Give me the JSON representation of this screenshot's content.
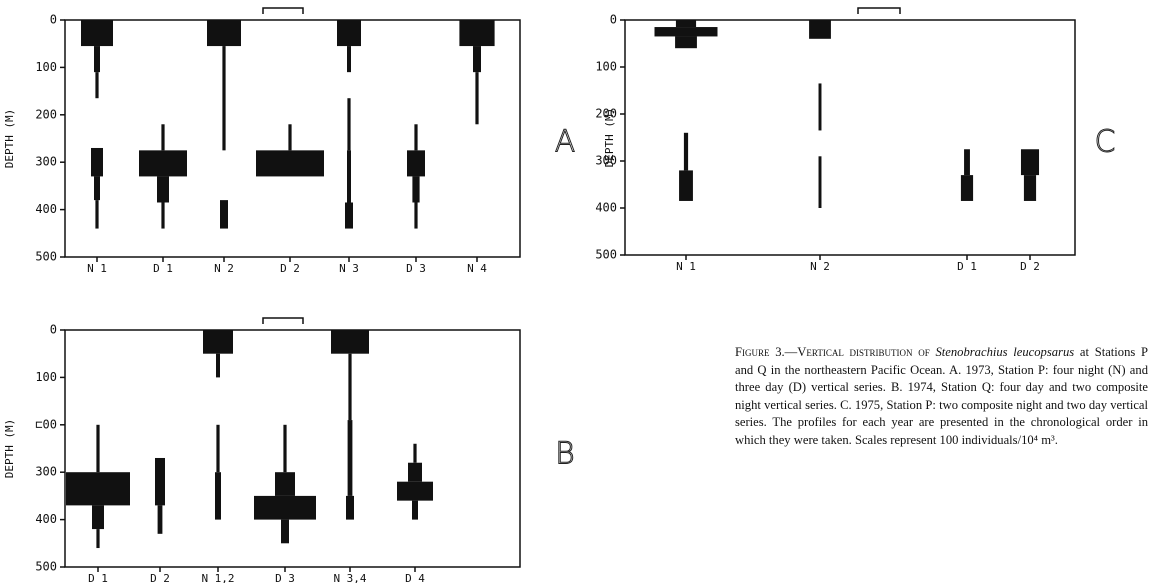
{
  "chart_data": [
    {
      "type": "kite",
      "panel_label": "A",
      "y_label": "DEPTH (M)",
      "ylim": [
        0,
        500
      ],
      "yticks": [
        0,
        100,
        200,
        300,
        400,
        500
      ],
      "scale_bar": 100,
      "categories": [
        "N 1",
        "D 1",
        "N 2",
        "D 2",
        "N 3",
        "D 3",
        "N 4"
      ],
      "profiles": [
        [
          {
            "top": 0,
            "bottom": 55,
            "width": 80
          },
          {
            "top": 55,
            "bottom": 110,
            "width": 15
          },
          {
            "top": 110,
            "bottom": 165,
            "width": 8
          },
          {
            "top": 270,
            "bottom": 330,
            "width": 30
          },
          {
            "top": 330,
            "bottom": 380,
            "width": 15
          },
          {
            "top": 380,
            "bottom": 440,
            "width": 8
          }
        ],
        [
          {
            "top": 220,
            "bottom": 275,
            "width": 8
          },
          {
            "top": 275,
            "bottom": 330,
            "width": 120
          },
          {
            "top": 330,
            "bottom": 385,
            "width": 30
          },
          {
            "top": 385,
            "bottom": 440,
            "width": 8
          }
        ],
        [
          {
            "top": 0,
            "bottom": 55,
            "width": 85
          },
          {
            "top": 55,
            "bottom": 275,
            "width": 8
          },
          {
            "top": 380,
            "bottom": 440,
            "width": 20
          }
        ],
        [
          {
            "top": 220,
            "bottom": 275,
            "width": 8
          },
          {
            "top": 275,
            "bottom": 330,
            "width": 170
          }
        ],
        [
          {
            "top": 0,
            "bottom": 55,
            "width": 60
          },
          {
            "top": 55,
            "bottom": 110,
            "width": 10
          },
          {
            "top": 165,
            "bottom": 275,
            "width": 8
          },
          {
            "top": 275,
            "bottom": 385,
            "width": 10
          },
          {
            "top": 385,
            "bottom": 440,
            "width": 20
          }
        ],
        [
          {
            "top": 220,
            "bottom": 275,
            "width": 8
          },
          {
            "top": 275,
            "bottom": 330,
            "width": 45
          },
          {
            "top": 330,
            "bottom": 385,
            "width": 18
          },
          {
            "top": 385,
            "bottom": 440,
            "width": 8
          }
        ],
        [
          {
            "top": 0,
            "bottom": 55,
            "width": 88
          },
          {
            "top": 55,
            "bottom": 110,
            "width": 20
          },
          {
            "top": 110,
            "bottom": 220,
            "width": 8
          }
        ]
      ]
    },
    {
      "type": "kite",
      "panel_label": "B",
      "y_label": "DEPTH (M)",
      "ylim": [
        0,
        500
      ],
      "yticks": [
        0,
        100,
        {
          "value": 200,
          "label": "⊏00"
        },
        300,
        400,
        500
      ],
      "scale_bar": 100,
      "categories": [
        "D 1",
        "D 2",
        "N 1,2",
        "D 3",
        "N 3,4",
        "D 4"
      ],
      "profiles": [
        [
          {
            "top": 200,
            "bottom": 300,
            "width": 8
          },
          {
            "top": 300,
            "bottom": 370,
            "width": 160
          },
          {
            "top": 370,
            "bottom": 420,
            "width": 30
          },
          {
            "top": 420,
            "bottom": 460,
            "width": 8
          }
        ],
        [
          {
            "top": 270,
            "bottom": 370,
            "width": 25
          },
          {
            "top": 370,
            "bottom": 430,
            "width": 12
          }
        ],
        [
          {
            "top": 0,
            "bottom": 50,
            "width": 75
          },
          {
            "top": 50,
            "bottom": 100,
            "width": 10
          },
          {
            "top": 200,
            "bottom": 300,
            "width": 8
          },
          {
            "top": 300,
            "bottom": 400,
            "width": 15
          }
        ],
        [
          {
            "top": 200,
            "bottom": 300,
            "width": 8
          },
          {
            "top": 300,
            "bottom": 350,
            "width": 50
          },
          {
            "top": 350,
            "bottom": 400,
            "width": 155
          },
          {
            "top": 400,
            "bottom": 450,
            "width": 20
          }
        ],
        [
          {
            "top": 0,
            "bottom": 50,
            "width": 95
          },
          {
            "top": 50,
            "bottom": 190,
            "width": 8
          },
          {
            "top": 190,
            "bottom": 350,
            "width": 12
          },
          {
            "top": 350,
            "bottom": 400,
            "width": 20
          }
        ],
        [
          {
            "top": 240,
            "bottom": 280,
            "width": 8
          },
          {
            "top": 280,
            "bottom": 320,
            "width": 35
          },
          {
            "top": 320,
            "bottom": 360,
            "width": 90
          },
          {
            "top": 360,
            "bottom": 400,
            "width": 15
          }
        ]
      ]
    },
    {
      "type": "kite",
      "panel_label": "C",
      "y_label": "DEPTH (M)",
      "ylim": [
        0,
        500
      ],
      "yticks": [
        0,
        100,
        200,
        300,
        400,
        500
      ],
      "scale_bar": 100,
      "categories": [
        "N 1",
        "N 2",
        "D 1",
        "D 2"
      ],
      "profiles": [
        [
          {
            "top": 0,
            "bottom": 15,
            "width": 48
          },
          {
            "top": 15,
            "bottom": 35,
            "width": 150
          },
          {
            "top": 35,
            "bottom": 60,
            "width": 52
          },
          {
            "top": 240,
            "bottom": 320,
            "width": 10
          },
          {
            "top": 320,
            "bottom": 385,
            "width": 33
          }
        ],
        [
          {
            "top": 0,
            "bottom": 40,
            "width": 52
          },
          {
            "top": 135,
            "bottom": 235,
            "width": 7
          },
          {
            "top": 290,
            "bottom": 400,
            "width": 7
          }
        ],
        [
          {
            "top": 275,
            "bottom": 330,
            "width": 14
          },
          {
            "top": 330,
            "bottom": 385,
            "width": 29
          }
        ],
        [
          {
            "top": 275,
            "bottom": 330,
            "width": 43
          },
          {
            "top": 330,
            "bottom": 385,
            "width": 29
          }
        ]
      ]
    }
  ],
  "caption": {
    "lead": "Figure 3.—Vertical distribution of ",
    "species": "Stenobrachius leucopsarus",
    "text": " at Stations P and Q in the northeastern Pacific Ocean. A. 1973, Station P: four night (N) and three day (D) vertical series. B. 1974, Station Q: four day and two composite night vertical series. C. 1975, Station P: two composite night and two day vertical series. The profiles for each year are presented in the chronological order in which they were taken. Scales represent 100 individuals/10⁴ m³."
  }
}
